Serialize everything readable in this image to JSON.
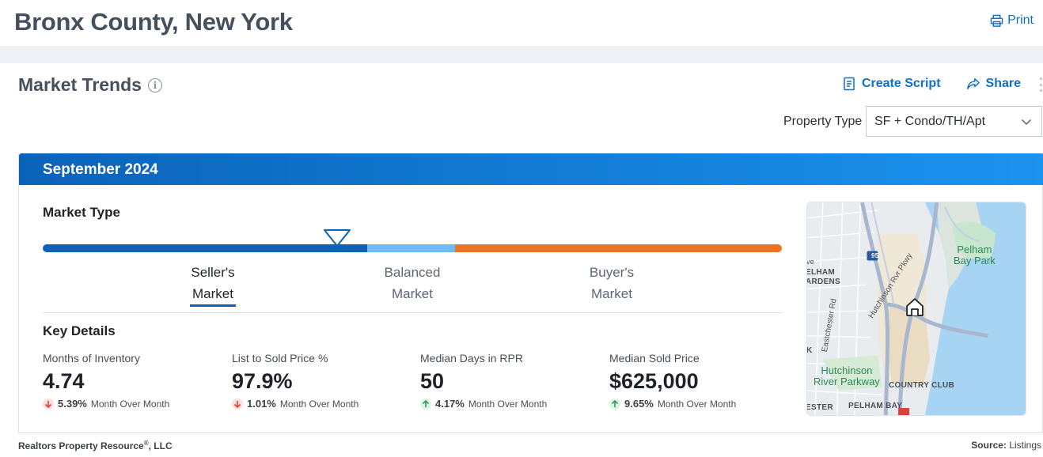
{
  "header": {
    "title": "Bronx County, New York",
    "print_label": "Print"
  },
  "section": {
    "title": "Market Trends",
    "actions": {
      "create_script": "Create Script",
      "share": "Share"
    }
  },
  "filters": {
    "property_type_label": "Property Type",
    "property_type_value": "SF + Condo/TH/Apt"
  },
  "panel": {
    "period": "September 2024",
    "market_type": {
      "label": "Market Type",
      "indicator_position": 0.398,
      "segments": [
        {
          "name": "seller",
          "start": 0.0,
          "end": 0.439,
          "color": "#0b63b8"
        },
        {
          "name": "balanced",
          "start": 0.439,
          "end": 0.558,
          "color": "#6cbdf7"
        },
        {
          "name": "buyer",
          "start": 0.558,
          "end": 1.0,
          "color": "#ef7421"
        }
      ],
      "options": [
        {
          "line1": "Seller's",
          "line2": "Market",
          "active": true
        },
        {
          "line1": "Balanced",
          "line2": "Market",
          "active": false
        },
        {
          "line1": "Buyer's",
          "line2": "Market",
          "active": false
        }
      ]
    },
    "key_details": {
      "label": "Key Details",
      "metrics": [
        {
          "label": "Months of Inventory",
          "value": "4.74",
          "direction": "down",
          "change": "5.39%",
          "period": "Month Over Month"
        },
        {
          "label": "List to Sold Price %",
          "value": "97.9%",
          "direction": "down",
          "change": "1.01%",
          "period": "Month Over Month"
        },
        {
          "label": "Median Days in RPR",
          "value": "50",
          "direction": "up",
          "change": "4.17%",
          "period": "Month Over Month"
        },
        {
          "label": "Median Sold Price",
          "value": "$625,000",
          "direction": "up",
          "change": "9.65%",
          "period": "Month Over Month"
        }
      ]
    },
    "map": {
      "labels": {
        "pelham_bay_park_1": "Pelham",
        "pelham_bay_park_2": "Bay Park",
        "hutchinson_1": "Hutchinson",
        "hutchinson_2": "River Parkway",
        "country_club": "COUNTRY CLUB",
        "pelham_bay": "PELHAM BAY",
        "ester": "ESTER",
        "elham": "ELHAM",
        "ardens": "ARDENS",
        "ve": "ve",
        "k": "K",
        "eastchester_rd": "Eastchester Rd",
        "hutchinson_rvr_pkwy": "Hutchinson Rvr Pkwy",
        "i95": "95"
      }
    }
  },
  "footer": {
    "left_prefix": "Realtors Property Resource",
    "left_reg": "®",
    "left_suffix": ", LLC",
    "right_label": "Source:",
    "right_value": "Listings"
  },
  "colors": {
    "accent": "#0f6fc6",
    "down": "#d9433a",
    "up": "#2e9b57"
  }
}
